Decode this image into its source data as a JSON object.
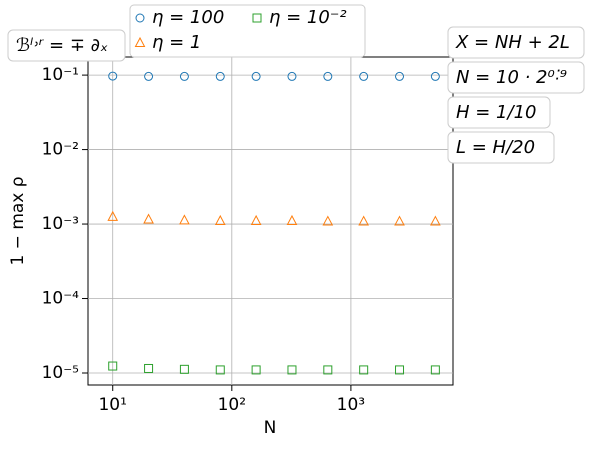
{
  "chart_data": {
    "type": "scatter",
    "x_label": "N",
    "y_label": "1 − max ρ",
    "xscale": "log",
    "yscale": "log",
    "grid": true,
    "x": [
      10,
      20,
      40,
      80,
      160,
      320,
      640,
      1280,
      2560,
      5120
    ],
    "series": [
      {
        "name": "η = 100",
        "color": "#1f77b4",
        "marker": "circle",
        "values": [
          0.097,
          0.096,
          0.096,
          0.096,
          0.096,
          0.096,
          0.096,
          0.096,
          0.096,
          0.096
        ]
      },
      {
        "name": "η = 1",
        "color": "#ff7f0e",
        "marker": "triangle",
        "values": [
          0.00125,
          0.00115,
          0.00112,
          0.0011,
          0.0011,
          0.0011,
          0.00108,
          0.00108,
          0.00108,
          0.00108
        ]
      },
      {
        "name": "η = 10⁻²",
        "color": "#2ca02c",
        "marker": "square",
        "values": [
          1.24e-05,
          1.15e-05,
          1.12e-05,
          1.1e-05,
          1.1e-05,
          1.1e-05,
          1.1e-05,
          1.1e-05,
          1.1e-05,
          1.1e-05
        ]
      }
    ],
    "xlim": [
      6.2,
      7200
    ],
    "ylim": [
      6.9e-06,
      0.175
    ],
    "xticks": [
      {
        "value": 10,
        "label": "10¹"
      },
      {
        "value": 100,
        "label": "10²"
      },
      {
        "value": 1000,
        "label": "10³"
      }
    ],
    "yticks": [
      {
        "value": 1e-05,
        "label": "10⁻⁵"
      },
      {
        "value": 0.0001,
        "label": "10⁻⁴"
      },
      {
        "value": 0.001,
        "label": "10⁻³"
      },
      {
        "value": 0.01,
        "label": "10⁻²"
      },
      {
        "value": 0.1,
        "label": "10⁻¹"
      }
    ],
    "annotations": [
      "ℬˡ˒ʳ = ∓ ∂ₓ",
      "X = NH + 2L",
      "N = 10 · 2⁰˸⁹",
      "H = 1/10",
      "L = H/20"
    ]
  }
}
